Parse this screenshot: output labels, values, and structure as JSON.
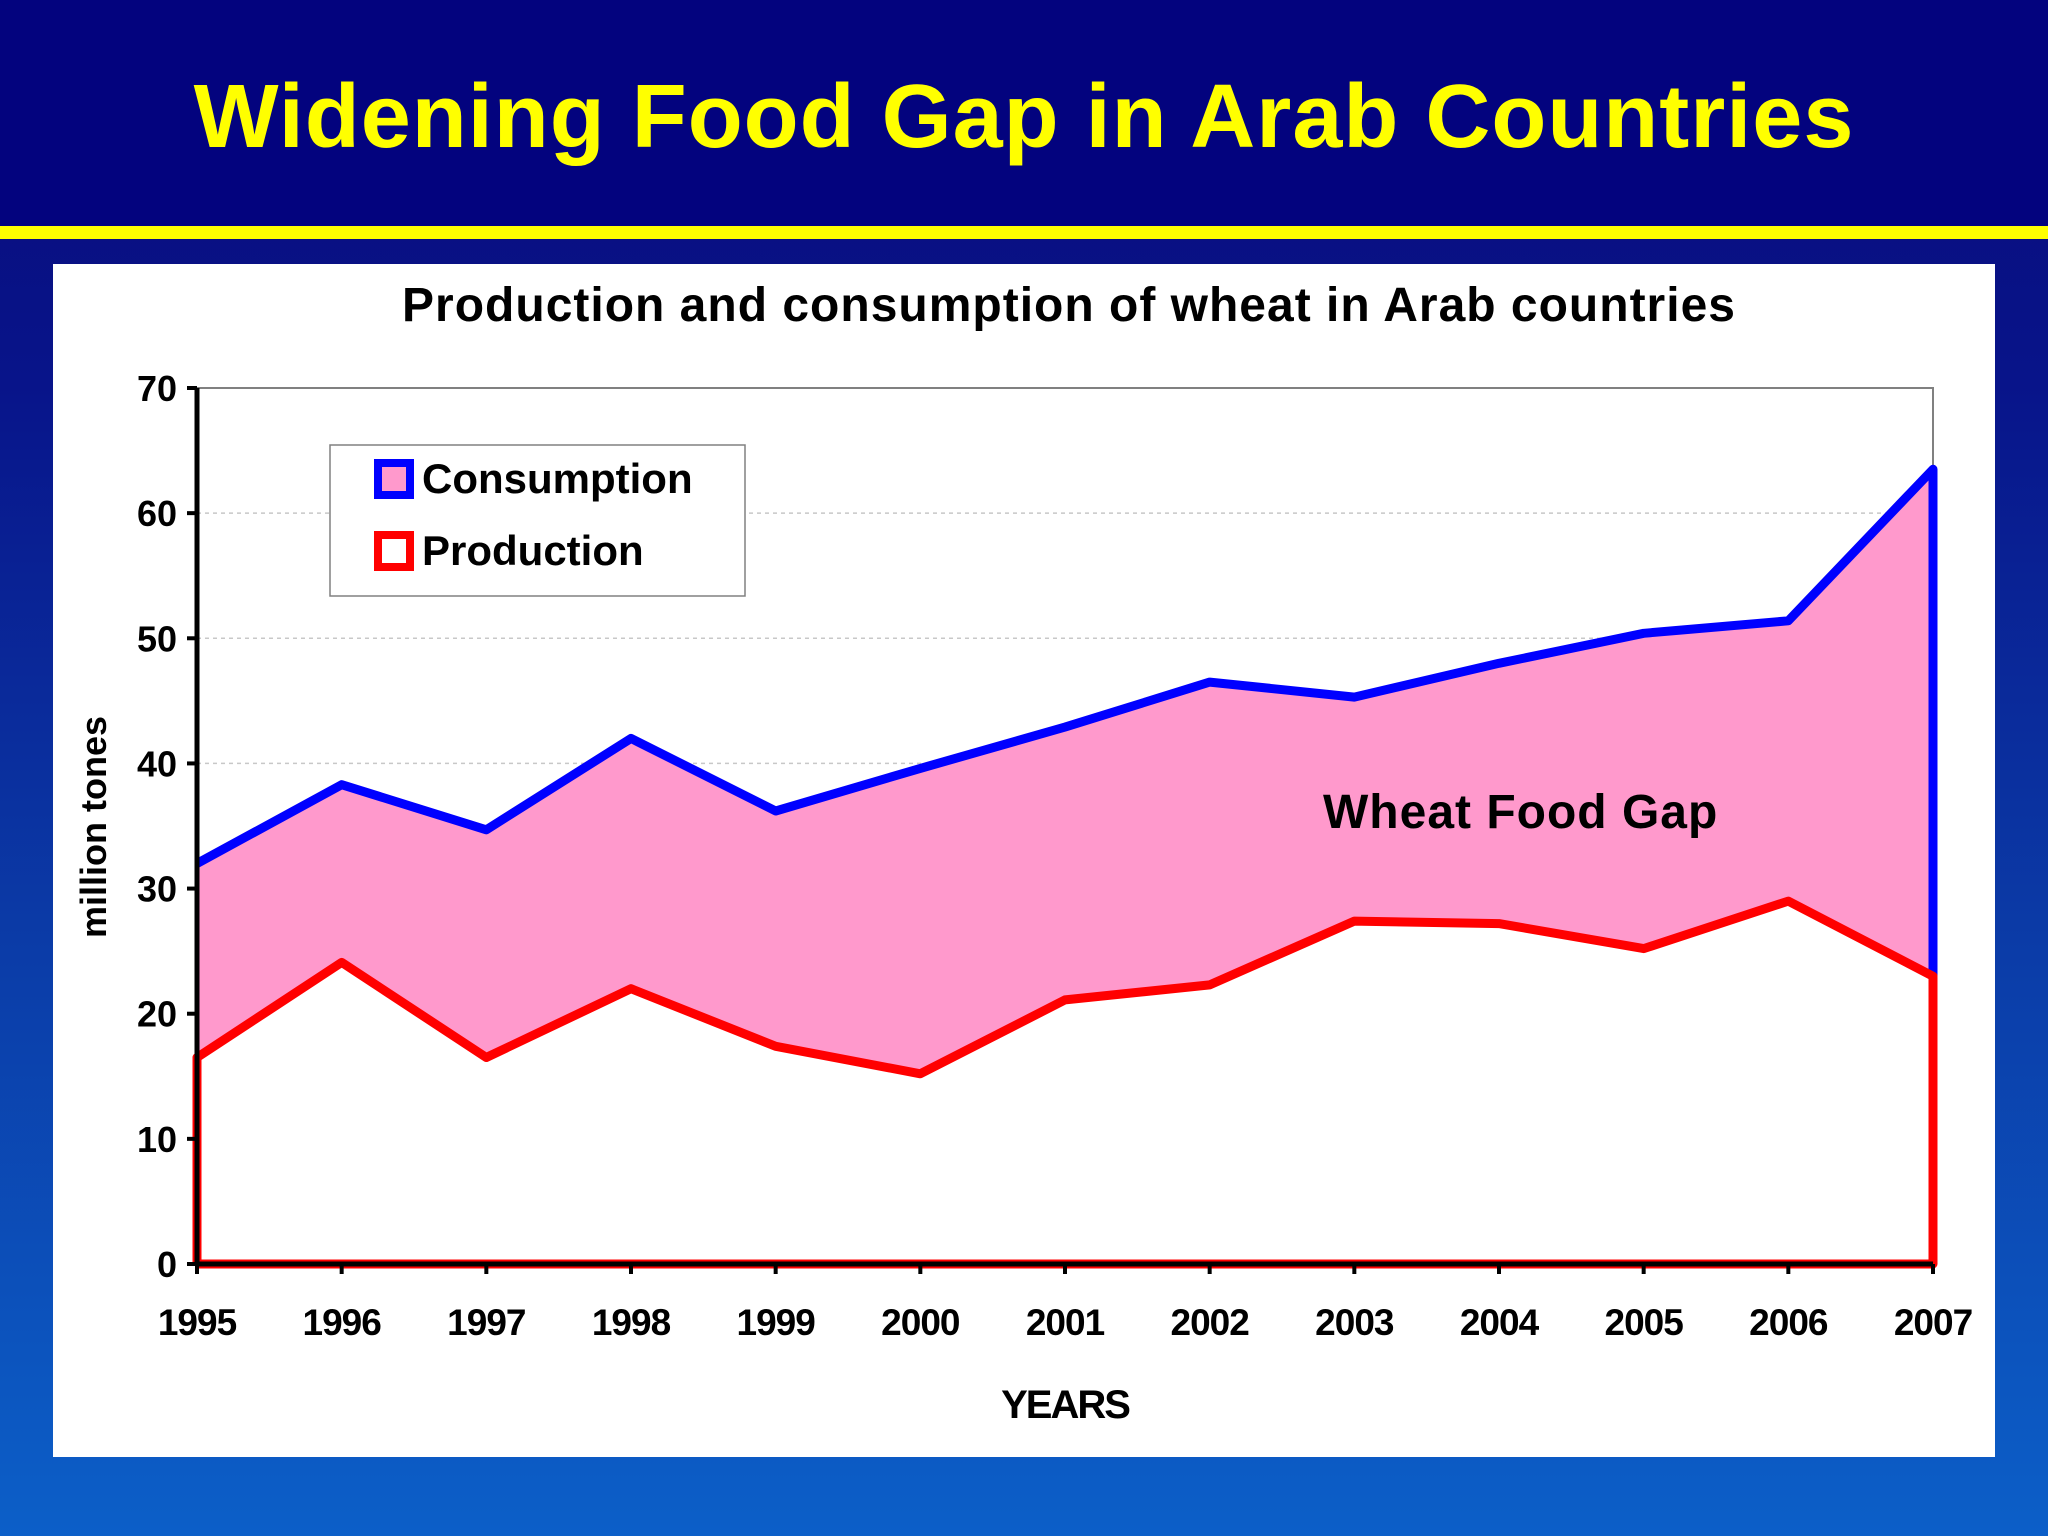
{
  "slide": {
    "title": "Widening Food Gap in Arab Countries"
  },
  "colors": {
    "consumption": "#0000ff",
    "production": "#ff0000",
    "gap_fill": "#ff99cc",
    "title": "#ffff00"
  },
  "chart_data": {
    "type": "area",
    "title": "Production and consumption of wheat in Arab countries",
    "xlabel": "YEARS",
    "ylabel": "million tones",
    "ylim": [
      0,
      70
    ],
    "yticks": [
      0,
      10,
      20,
      30,
      40,
      50,
      60,
      70
    ],
    "x": [
      "1995",
      "1996",
      "1997",
      "1998",
      "1999",
      "2000",
      "2001",
      "2002",
      "2003",
      "2004",
      "2005",
      "2006",
      "2007"
    ],
    "series": [
      {
        "name": "Consumption",
        "color": "#0000ff",
        "values": [
          32,
          38.3,
          34.7,
          42,
          36.2,
          39.6,
          42.9,
          46.5,
          45.3,
          48,
          50.4,
          51.4,
          63.5
        ]
      },
      {
        "name": "Production",
        "color": "#ff0000",
        "values": [
          16.5,
          24.1,
          16.5,
          22,
          17.4,
          15.2,
          21.1,
          22.3,
          27.4,
          27.2,
          25.2,
          29,
          23
        ]
      }
    ],
    "annotations": [
      {
        "text": "Wheat Food Gap"
      }
    ],
    "legend": {
      "position": "top-left"
    },
    "grid": true
  }
}
